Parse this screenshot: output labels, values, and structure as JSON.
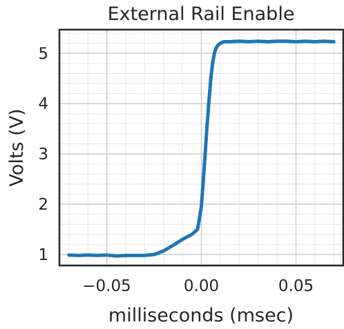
{
  "chart_data": {
    "type": "line",
    "title": "External Rail Enable",
    "xlabel": "milliseconds (msec)",
    "ylabel": "Volts (V)",
    "xlim": [
      -0.075,
      0.075
    ],
    "ylim": [
      0.78,
      5.47
    ],
    "grid": true,
    "x_ticks": [
      -0.05,
      0.0,
      0.05
    ],
    "x_tick_labels": [
      "−0.05",
      "0.00",
      "0.05"
    ],
    "y_ticks": [
      1,
      2,
      3,
      4,
      5
    ],
    "y_tick_labels": [
      "1",
      "2",
      "3",
      "4",
      "5"
    ],
    "series": [
      {
        "color": "#1f77b4",
        "x": [
          -0.07,
          -0.065,
          -0.06,
          -0.055,
          -0.05,
          -0.045,
          -0.04,
          -0.035,
          -0.03,
          -0.025,
          -0.02,
          -0.015,
          -0.01,
          -0.005,
          -0.002,
          0.0,
          0.001,
          0.002,
          0.003,
          0.004,
          0.005,
          0.006,
          0.007,
          0.008,
          0.009,
          0.01,
          0.012,
          0.015,
          0.02,
          0.025,
          0.03,
          0.035,
          0.04,
          0.045,
          0.05,
          0.055,
          0.06,
          0.065,
          0.07
        ],
        "y": [
          0.99,
          0.98,
          0.99,
          0.98,
          0.99,
          0.97,
          0.98,
          0.98,
          0.98,
          1.0,
          1.07,
          1.18,
          1.3,
          1.4,
          1.5,
          1.95,
          2.45,
          3.0,
          3.55,
          4.05,
          4.5,
          4.82,
          5.02,
          5.12,
          5.17,
          5.2,
          5.23,
          5.23,
          5.24,
          5.23,
          5.24,
          5.23,
          5.24,
          5.24,
          5.23,
          5.24,
          5.23,
          5.24,
          5.23
        ]
      }
    ]
  }
}
